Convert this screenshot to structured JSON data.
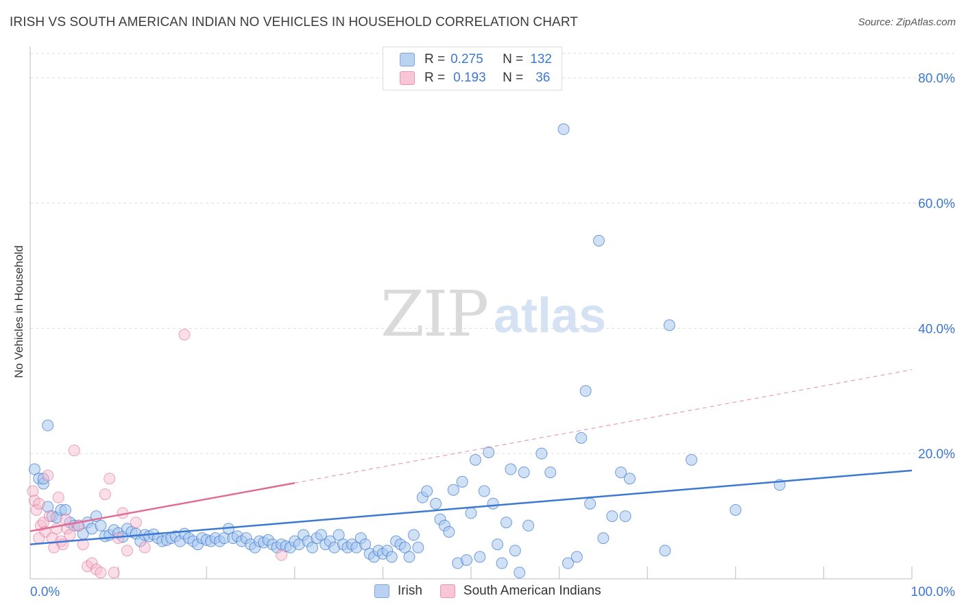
{
  "title": "IRISH VS SOUTH AMERICAN INDIAN NO VEHICLES IN HOUSEHOLD CORRELATION CHART",
  "source": "Source: ZipAtlas.com",
  "watermark": {
    "zip": "ZIP",
    "atlas": "atlas"
  },
  "colors": {
    "irish": "#3b78d0",
    "irish_fill": "#aac8ee",
    "sai": "#e06c95",
    "sai_fill": "#f5b8cc",
    "grid": "#dddddd"
  },
  "legend": {
    "rows": [
      {
        "r_label": "R =",
        "r_value": "0.275",
        "n_label": "N =",
        "n_value": "132"
      },
      {
        "r_label": "R =",
        "r_value": "0.193",
        "n_label": "N =",
        "n_value": "36"
      }
    ]
  },
  "bottom_legend": [
    "Irish",
    "South American Indians"
  ],
  "chart_data": {
    "type": "scatter",
    "ylabel": "No Vehicles in Household",
    "xlim": [
      0,
      100
    ],
    "ylim": [
      0,
      85
    ],
    "x_tick_labels": [
      {
        "v": 0,
        "t": "0.0%"
      },
      {
        "v": 100,
        "t": "100.0%"
      }
    ],
    "y_tick_labels": [
      {
        "v": 20,
        "t": "20.0%"
      },
      {
        "v": 40,
        "t": "40.0%"
      },
      {
        "v": 60,
        "t": "60.0%"
      },
      {
        "v": 80,
        "t": "80.0%"
      }
    ],
    "y_gridlines": [
      20,
      40,
      60,
      80
    ],
    "x_minor_ticks": [
      10,
      20,
      30,
      40,
      50,
      60,
      70,
      80,
      90
    ],
    "series": [
      {
        "name": "Irish",
        "trend": {
          "x": [
            0,
            100
          ],
          "y": [
            5.5,
            17.3
          ],
          "dashed_from": null
        },
        "points": [
          [
            0.5,
            17.5
          ],
          [
            1,
            16.0
          ],
          [
            1.5,
            15.2
          ],
          [
            2,
            11.5
          ],
          [
            2.5,
            10.0
          ],
          [
            3,
            9.8
          ],
          [
            3.5,
            11.0
          ],
          [
            4,
            11.0
          ],
          [
            4.5,
            9.0
          ],
          [
            5,
            8.5
          ],
          [
            5.5,
            8.5
          ],
          [
            6,
            7.2
          ],
          [
            6.5,
            9.0
          ],
          [
            7,
            8.0
          ],
          [
            7.5,
            10.0
          ],
          [
            8,
            8.5
          ],
          [
            8.5,
            6.8
          ],
          [
            9,
            7.0
          ],
          [
            9.5,
            7.8
          ],
          [
            10,
            7.3
          ],
          [
            10.5,
            6.7
          ],
          [
            11,
            8.0
          ],
          [
            11.5,
            7.5
          ],
          [
            12,
            7.2
          ],
          [
            12.5,
            6.0
          ],
          [
            13,
            7.0
          ],
          [
            13.5,
            6.8
          ],
          [
            14,
            7.1
          ],
          [
            14.5,
            6.5
          ],
          [
            15,
            6.0
          ],
          [
            15.5,
            6.2
          ],
          [
            16,
            6.5
          ],
          [
            16.5,
            6.8
          ],
          [
            17,
            6.0
          ],
          [
            17.5,
            7.2
          ],
          [
            18,
            6.5
          ],
          [
            18.5,
            6.0
          ],
          [
            19,
            5.5
          ],
          [
            19.5,
            6.5
          ],
          [
            20,
            6.2
          ],
          [
            20.5,
            6.0
          ],
          [
            21,
            6.5
          ],
          [
            21.5,
            6.0
          ],
          [
            22,
            6.5
          ],
          [
            22.5,
            8.0
          ],
          [
            23,
            6.5
          ],
          [
            23.5,
            6.8
          ],
          [
            24,
            6.0
          ],
          [
            24.5,
            6.5
          ],
          [
            25,
            5.5
          ],
          [
            25.5,
            5.0
          ],
          [
            26,
            6.0
          ],
          [
            26.5,
            5.8
          ],
          [
            27,
            6.2
          ],
          [
            27.5,
            5.5
          ],
          [
            28,
            5.0
          ],
          [
            28.5,
            5.5
          ],
          [
            29,
            5.2
          ],
          [
            29.5,
            5.0
          ],
          [
            30,
            6.0
          ],
          [
            30.5,
            5.5
          ],
          [
            31,
            7.0
          ],
          [
            31.5,
            6.0
          ],
          [
            32,
            5.0
          ],
          [
            32.5,
            6.5
          ],
          [
            33,
            7.0
          ],
          [
            33.5,
            5.5
          ],
          [
            34,
            6.0
          ],
          [
            34.5,
            5.0
          ],
          [
            35,
            7.0
          ],
          [
            35.5,
            5.5
          ],
          [
            36,
            5.0
          ],
          [
            36.5,
            5.5
          ],
          [
            37,
            5.0
          ],
          [
            37.5,
            6.5
          ],
          [
            38,
            5.5
          ],
          [
            38.5,
            4.0
          ],
          [
            39,
            3.5
          ],
          [
            39.5,
            4.5
          ],
          [
            40,
            4.0
          ],
          [
            40.5,
            4.5
          ],
          [
            41,
            3.5
          ],
          [
            41.5,
            6.0
          ],
          [
            42,
            5.5
          ],
          [
            42.5,
            5.0
          ],
          [
            43,
            3.5
          ],
          [
            43.5,
            7.0
          ],
          [
            44,
            5.0
          ],
          [
            44.5,
            13.0
          ],
          [
            45,
            14.0
          ],
          [
            46,
            12.0
          ],
          [
            46.5,
            9.5
          ],
          [
            47,
            8.5
          ],
          [
            47.5,
            7.5
          ],
          [
            48,
            14.2
          ],
          [
            48.5,
            2.5
          ],
          [
            49,
            15.5
          ],
          [
            49.5,
            3.0
          ],
          [
            50,
            10.5
          ],
          [
            50.5,
            19.0
          ],
          [
            51,
            3.5
          ],
          [
            51.5,
            14.0
          ],
          [
            52,
            20.2
          ],
          [
            52.5,
            12.0
          ],
          [
            53,
            5.5
          ],
          [
            53.5,
            2.5
          ],
          [
            54,
            9.0
          ],
          [
            54.5,
            17.5
          ],
          [
            55,
            4.5
          ],
          [
            55.5,
            1.0
          ],
          [
            56,
            17.0
          ],
          [
            56.5,
            8.5
          ],
          [
            58,
            20.0
          ],
          [
            59,
            17.0
          ],
          [
            60.5,
            71.8
          ],
          [
            61,
            2.5
          ],
          [
            62,
            3.5
          ],
          [
            62.5,
            22.5
          ],
          [
            63,
            30.0
          ],
          [
            63.5,
            12.0
          ],
          [
            64.5,
            54.0
          ],
          [
            65,
            6.5
          ],
          [
            66,
            10.0
          ],
          [
            67,
            17.0
          ],
          [
            67.5,
            10.0
          ],
          [
            68,
            16.0
          ],
          [
            72,
            4.5
          ],
          [
            72.5,
            40.5
          ],
          [
            75,
            19.0
          ],
          [
            80,
            11.0
          ],
          [
            85,
            15.0
          ],
          [
            1.5,
            16.0
          ],
          [
            2,
            24.5
          ]
        ]
      },
      {
        "name": "South American Indians",
        "trend": {
          "x": [
            0,
            30,
            100
          ],
          "y": [
            7.6,
            15.3,
            33.4
          ],
          "dashed_from": 30
        },
        "points": [
          [
            0.3,
            14.0
          ],
          [
            0.5,
            12.5
          ],
          [
            0.7,
            11.0
          ],
          [
            1,
            12.0
          ],
          [
            1.2,
            8.5
          ],
          [
            1.5,
            9.0
          ],
          [
            1.7,
            7.5
          ],
          [
            2,
            16.5
          ],
          [
            2.2,
            10.0
          ],
          [
            2.5,
            6.5
          ],
          [
            2.7,
            5.0
          ],
          [
            3,
            8.0
          ],
          [
            3.2,
            13.0
          ],
          [
            3.5,
            6.0
          ],
          [
            3.7,
            5.5
          ],
          [
            4,
            9.5
          ],
          [
            4.2,
            8.0
          ],
          [
            4.5,
            7.0
          ],
          [
            5,
            20.5
          ],
          [
            5.5,
            8.5
          ],
          [
            6,
            5.5
          ],
          [
            6.5,
            2.0
          ],
          [
            7,
            2.5
          ],
          [
            7.5,
            1.5
          ],
          [
            8,
            1.0
          ],
          [
            8.5,
            13.5
          ],
          [
            9,
            16.0
          ],
          [
            9.5,
            1.0
          ],
          [
            10,
            6.5
          ],
          [
            10.5,
            10.5
          ],
          [
            11,
            4.5
          ],
          [
            12,
            9.0
          ],
          [
            13,
            5.0
          ],
          [
            17.5,
            39.0
          ],
          [
            28.5,
            3.8
          ],
          [
            1,
            6.5
          ]
        ]
      }
    ]
  }
}
